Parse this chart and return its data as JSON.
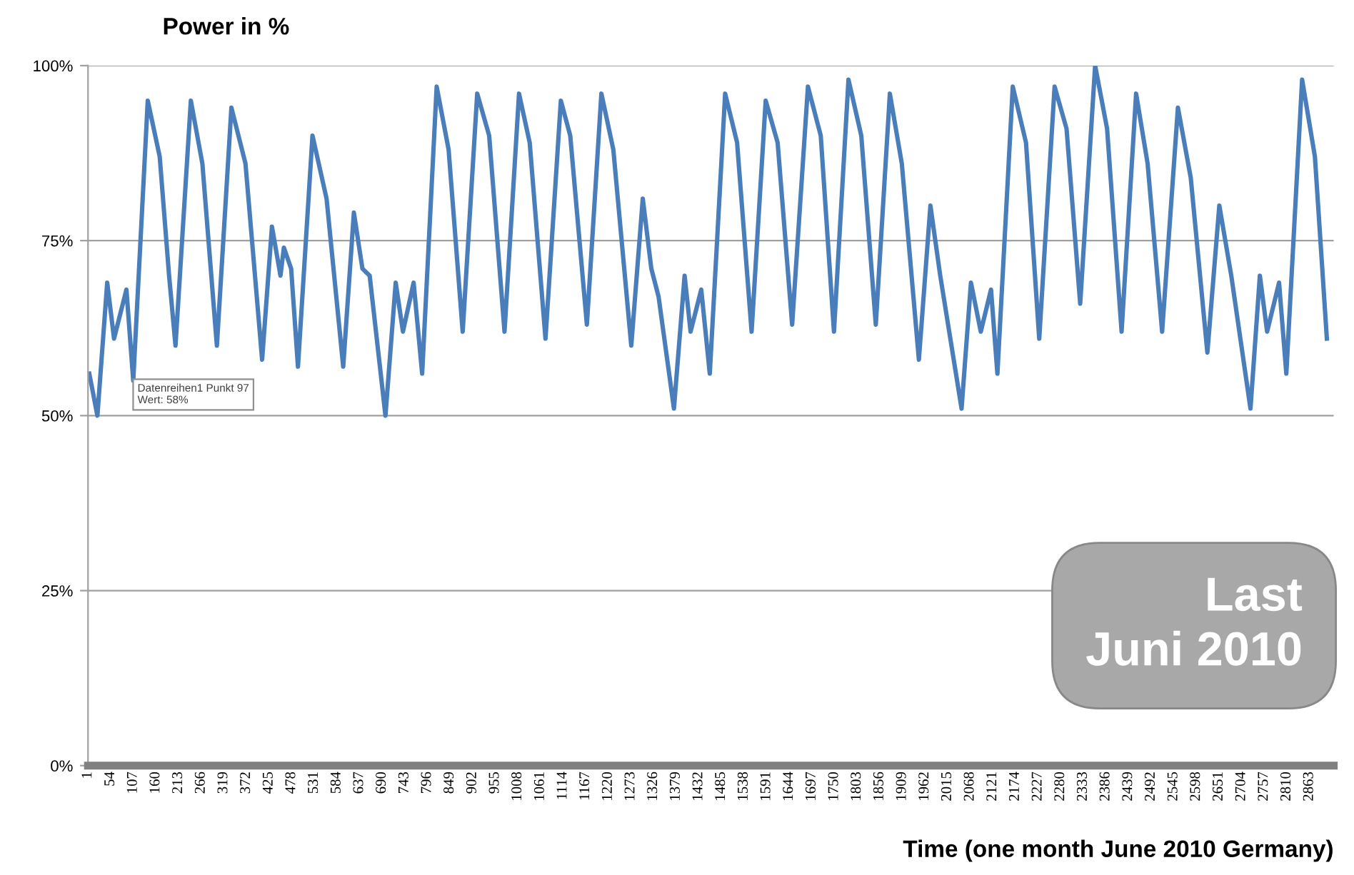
{
  "chart_data": {
    "type": "line",
    "ylabel": "Power in %",
    "xlabel": "Time (one month June 2010 Germany)",
    "annotations": [
      {
        "text": "Datenreihen1 Punkt 97\nWert: 58%",
        "x": 97,
        "y": 58
      },
      "Last\nJuni 2010"
    ],
    "series": [
      {
        "color": "#4a7ebb",
        "x": [
          4,
          23,
          46,
          62,
          91,
          107,
          124,
          141,
          169,
          191,
          206,
          242,
          269,
          303,
          337,
          370,
          409,
          432,
          452,
          460,
          477,
          493,
          527,
          560,
          599,
          624,
          644,
          661,
          698,
          722,
          739,
          764,
          784,
          818,
          846,
          879,
          913,
          941,
          977,
          1011,
          1036,
          1073,
          1109,
          1131,
          1170,
          1204,
          1232,
          1274,
          1301,
          1321,
          1338,
          1374,
          1399,
          1413,
          1438,
          1458,
          1494,
          1522,
          1556,
          1589,
          1617,
          1651,
          1688,
          1718,
          1749,
          1783,
          1813,
          1847,
          1880,
          1908,
          1948,
          1975,
          1998,
          2048,
          2070,
          2093,
          2117,
          2132,
          2168,
          2199,
          2230,
          2266,
          2294,
          2326,
          2361,
          2389,
          2423,
          2457,
          2484,
          2518,
          2555,
          2585,
          2624,
          2652,
          2680,
          2725,
          2747,
          2764,
          2792,
          2809,
          2846,
          2876,
          2904
        ],
        "values": [
          56,
          50,
          69,
          61,
          68,
          55,
          75,
          95,
          87,
          70,
          60,
          95,
          86,
          60,
          94,
          86,
          58,
          77,
          70,
          74,
          71,
          57,
          90,
          81,
          57,
          79,
          71,
          70,
          50,
          69,
          62,
          69,
          56,
          97,
          88,
          62,
          96,
          90,
          62,
          96,
          89,
          61,
          95,
          90,
          63,
          96,
          88,
          60,
          81,
          71,
          67,
          51,
          70,
          62,
          68,
          56,
          96,
          89,
          62,
          95,
          89,
          63,
          97,
          90,
          62,
          98,
          90,
          63,
          96,
          86,
          58,
          80,
          70,
          51,
          69,
          62,
          68,
          56,
          97,
          89,
          61,
          97,
          91,
          66,
          100,
          91,
          62,
          96,
          86,
          62,
          94,
          84,
          59,
          80,
          70,
          51,
          70,
          62,
          69,
          56,
          98,
          87,
          61
        ]
      }
    ],
    "xlim": [
      1,
      2920
    ],
    "xticks": [
      1,
      54,
      107,
      160,
      213,
      266,
      319,
      372,
      425,
      478,
      531,
      584,
      637,
      690,
      743,
      796,
      849,
      902,
      955,
      1008,
      1061,
      1114,
      1167,
      1220,
      1273,
      1326,
      1379,
      1432,
      1485,
      1538,
      1591,
      1644,
      1697,
      1750,
      1803,
      1856,
      1909,
      1962,
      2015,
      2068,
      2121,
      2174,
      2227,
      2280,
      2333,
      2386,
      2439,
      2492,
      2545,
      2598,
      2651,
      2704,
      2757,
      2810,
      2863
    ],
    "ylim": [
      0,
      100
    ],
    "yticks": [
      {
        "value": 0,
        "label": "0%"
      },
      {
        "value": 25,
        "label": "25%"
      },
      {
        "value": 50,
        "label": "50%"
      },
      {
        "value": 75,
        "label": "75%"
      },
      {
        "value": 100,
        "label": "100%"
      }
    ],
    "grid": "y",
    "legend": false,
    "marker": "none",
    "line_style": "solid"
  }
}
